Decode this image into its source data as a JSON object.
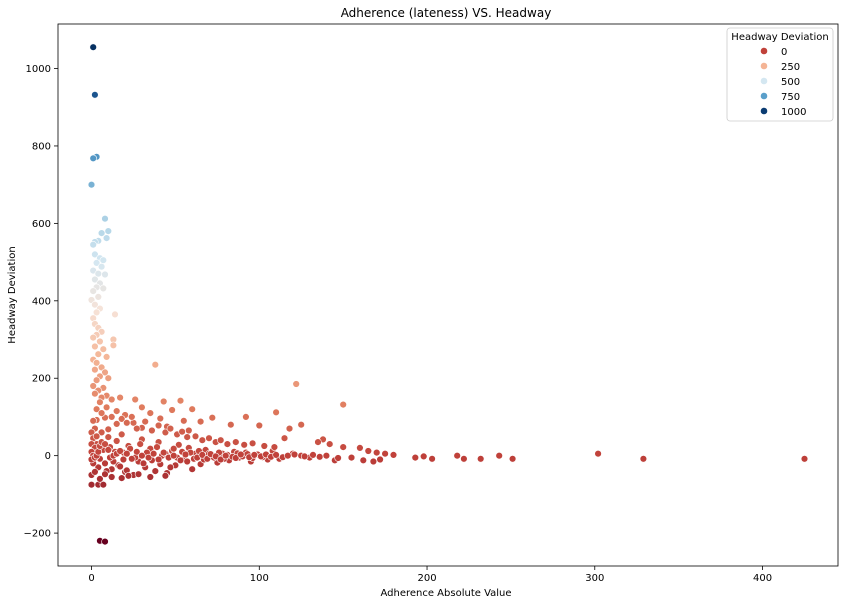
{
  "chart_data": {
    "type": "scatter",
    "title": "Adherence (lateness) VS. Headway",
    "xlabel": "Adherence Absolute Value",
    "ylabel": "Headway Deviation",
    "xlim": [
      -20,
      445
    ],
    "ylim": [
      -285,
      1115
    ],
    "xticks": [
      0,
      100,
      200,
      300,
      400
    ],
    "yticks": [
      -200,
      0,
      200,
      400,
      600,
      800,
      1000
    ],
    "xtick_labels": [
      "0",
      "100",
      "200",
      "300",
      "400"
    ],
    "ytick_labels": [
      "−200",
      "0",
      "200",
      "400",
      "600",
      "800",
      "1000"
    ],
    "grid": false,
    "legend": {
      "title": "Headway Deviation",
      "placement": "top-right",
      "entries": [
        {
          "label": "0",
          "value": 0,
          "color": "#c0413a"
        },
        {
          "label": "250",
          "value": 250,
          "color": "#f4b495"
        },
        {
          "label": "500",
          "value": 500,
          "color": "#d4e7f1"
        },
        {
          "label": "750",
          "value": 750,
          "color": "#5a9fca"
        },
        {
          "label": "1000",
          "value": 1000,
          "color": "#0b3c72"
        }
      ]
    },
    "color_scale": {
      "stops": [
        {
          "value": -220,
          "color": "#67001f"
        },
        {
          "value": 0,
          "color": "#c0413a"
        },
        {
          "value": 125,
          "color": "#e07c5e"
        },
        {
          "value": 250,
          "color": "#f4b495"
        },
        {
          "value": 375,
          "color": "#f6e3d8"
        },
        {
          "value": 500,
          "color": "#d4e7f1"
        },
        {
          "value": 625,
          "color": "#a7cfe4"
        },
        {
          "value": 750,
          "color": "#5a9fca"
        },
        {
          "value": 875,
          "color": "#2b6aa8"
        },
        {
          "value": 1000,
          "color": "#0b3c72"
        },
        {
          "value": 1060,
          "color": "#053061"
        }
      ]
    },
    "points": [
      [
        1,
        1055
      ],
      [
        2,
        932
      ],
      [
        3,
        772
      ],
      [
        1,
        768
      ],
      [
        0,
        700
      ],
      [
        8,
        612
      ],
      [
        10,
        580
      ],
      [
        6,
        575
      ],
      [
        9,
        562
      ],
      [
        4,
        555
      ],
      [
        2,
        552
      ],
      [
        1,
        545
      ],
      [
        2,
        520
      ],
      [
        5,
        510
      ],
      [
        7,
        505
      ],
      [
        3,
        498
      ],
      [
        6,
        488
      ],
      [
        1,
        478
      ],
      [
        4,
        470
      ],
      [
        8,
        468
      ],
      [
        2,
        455
      ],
      [
        5,
        445
      ],
      [
        3,
        435
      ],
      [
        7,
        432
      ],
      [
        1,
        425
      ],
      [
        4,
        410
      ],
      [
        0,
        402
      ],
      [
        2,
        390
      ],
      [
        5,
        380
      ],
      [
        3,
        370
      ],
      [
        14,
        365
      ],
      [
        1,
        355
      ],
      [
        2,
        340
      ],
      [
        4,
        330
      ],
      [
        6,
        320
      ],
      [
        3,
        312
      ],
      [
        1,
        305
      ],
      [
        13,
        300
      ],
      [
        5,
        295
      ],
      [
        13,
        285
      ],
      [
        2,
        282
      ],
      [
        7,
        275
      ],
      [
        4,
        262
      ],
      [
        9,
        255
      ],
      [
        1,
        248
      ],
      [
        3,
        240
      ],
      [
        38,
        235
      ],
      [
        6,
        228
      ],
      [
        2,
        222
      ],
      [
        8,
        215
      ],
      [
        5,
        205
      ],
      [
        10,
        200
      ],
      [
        3,
        195
      ],
      [
        122,
        185
      ],
      [
        1,
        180
      ],
      [
        7,
        175
      ],
      [
        4,
        168
      ],
      [
        2,
        160
      ],
      [
        9,
        155
      ],
      [
        6,
        150
      ],
      [
        12,
        145
      ],
      [
        17,
        150
      ],
      [
        26,
        145
      ],
      [
        43,
        140
      ],
      [
        53,
        142
      ],
      [
        5,
        138
      ],
      [
        150,
        132
      ],
      [
        30,
        125
      ],
      [
        48,
        118
      ],
      [
        60,
        120
      ],
      [
        35,
        110
      ],
      [
        110,
        112
      ],
      [
        92,
        100
      ],
      [
        72,
        98
      ],
      [
        20,
        105
      ],
      [
        8,
        98
      ],
      [
        41,
        96
      ],
      [
        3,
        92
      ],
      [
        55,
        90
      ],
      [
        65,
        88
      ],
      [
        25,
        85
      ],
      [
        15,
        82
      ],
      [
        83,
        80
      ],
      [
        100,
        78
      ],
      [
        125,
        80
      ],
      [
        45,
        75
      ],
      [
        30,
        72
      ],
      [
        118,
        70
      ],
      [
        10,
        68
      ],
      [
        58,
        65
      ],
      [
        138,
        42
      ],
      [
        115,
        45
      ],
      [
        135,
        35
      ],
      [
        142,
        30
      ],
      [
        150,
        22
      ],
      [
        160,
        20
      ],
      [
        165,
        12
      ],
      [
        170,
        8
      ],
      [
        175,
        5
      ],
      [
        180,
        2
      ],
      [
        193,
        -5
      ],
      [
        198,
        -2
      ],
      [
        203,
        -8
      ],
      [
        218,
        0
      ],
      [
        222,
        -8
      ],
      [
        232,
        -8
      ],
      [
        243,
        0
      ],
      [
        251,
        -8
      ],
      [
        302,
        5
      ],
      [
        329,
        -8
      ],
      [
        425,
        -8
      ],
      [
        155,
        -5
      ],
      [
        162,
        -12
      ],
      [
        168,
        -15
      ],
      [
        172,
        -10
      ],
      [
        145,
        -12
      ],
      [
        130,
        -5
      ],
      [
        125,
        0
      ],
      [
        120,
        5
      ],
      [
        112,
        -8
      ],
      [
        108,
        12
      ],
      [
        105,
        -10
      ],
      [
        98,
        2
      ],
      [
        95,
        -15
      ],
      [
        92,
        8
      ],
      [
        88,
        -5
      ],
      [
        85,
        10
      ],
      [
        82,
        -12
      ],
      [
        78,
        5
      ],
      [
        75,
        -18
      ],
      [
        72,
        0
      ],
      [
        68,
        15
      ],
      [
        65,
        -22
      ],
      [
        62,
        5
      ],
      [
        60,
        -35
      ],
      [
        58,
        20
      ],
      [
        55,
        -10
      ],
      [
        52,
        28
      ],
      [
        50,
        -25
      ],
      [
        48,
        12
      ],
      [
        45,
        -45
      ],
      [
        42,
        0
      ],
      [
        40,
        35
      ],
      [
        38,
        -40
      ],
      [
        35,
        18
      ],
      [
        32,
        -30
      ],
      [
        30,
        42
      ],
      [
        28,
        -15
      ],
      [
        25,
        -50
      ],
      [
        22,
        25
      ],
      [
        20,
        -42
      ],
      [
        18,
        55
      ],
      [
        16,
        -25
      ],
      [
        14,
        10
      ],
      [
        12,
        -35
      ],
      [
        10,
        48
      ],
      [
        8,
        -20
      ],
      [
        6,
        60
      ],
      [
        4,
        -30
      ],
      [
        2,
        5
      ],
      [
        1,
        -20
      ],
      [
        3,
        30
      ],
      [
        5,
        -8
      ],
      [
        7,
        15
      ],
      [
        9,
        -40
      ],
      [
        11,
        22
      ],
      [
        13,
        -15
      ],
      [
        15,
        38
      ],
      [
        17,
        -28
      ],
      [
        19,
        8
      ],
      [
        21,
        -38
      ],
      [
        23,
        18
      ],
      [
        26,
        -5
      ],
      [
        29,
        30
      ],
      [
        31,
        -20
      ],
      [
        33,
        8
      ],
      [
        36,
        -12
      ],
      [
        39,
        22
      ],
      [
        41,
        -22
      ],
      [
        44,
        5
      ],
      [
        47,
        -30
      ],
      [
        49,
        18
      ],
      [
        51,
        -5
      ],
      [
        54,
        10
      ],
      [
        57,
        -15
      ],
      [
        59,
        8
      ],
      [
        61,
        -8
      ],
      [
        64,
        12
      ],
      [
        67,
        -10
      ],
      [
        70,
        5
      ],
      [
        73,
        -5
      ],
      [
        76,
        8
      ],
      [
        79,
        -8
      ],
      [
        81,
        2
      ],
      [
        84,
        -3
      ],
      [
        87,
        6
      ],
      [
        90,
        -2
      ],
      [
        93,
        4
      ],
      [
        96,
        -6
      ],
      [
        99,
        3
      ],
      [
        102,
        -4
      ],
      [
        0,
        -75
      ],
      [
        4,
        -75
      ],
      [
        7,
        -75
      ],
      [
        12,
        -55
      ],
      [
        18,
        -58
      ],
      [
        22,
        -52
      ],
      [
        28,
        -48
      ],
      [
        35,
        -55
      ],
      [
        44,
        -52
      ],
      [
        0,
        -50
      ],
      [
        2,
        -42
      ],
      [
        5,
        -60
      ],
      [
        8,
        -48
      ],
      [
        5,
        -220
      ],
      [
        8,
        -222
      ],
      [
        1,
        90
      ],
      [
        2,
        70
      ],
      [
        0,
        60
      ],
      [
        1,
        45
      ],
      [
        3,
        50
      ],
      [
        0,
        30
      ],
      [
        2,
        20
      ],
      [
        0,
        10
      ],
      [
        1,
        0
      ],
      [
        0,
        -10
      ],
      [
        2,
        -5
      ],
      [
        3,
        0
      ],
      [
        4,
        10
      ],
      [
        5,
        25
      ],
      [
        6,
        35
      ],
      [
        8,
        30
      ],
      [
        10,
        15
      ],
      [
        11,
        -5
      ],
      [
        13,
        0
      ],
      [
        15,
        5
      ],
      [
        17,
        12
      ],
      [
        19,
        -10
      ],
      [
        21,
        5
      ],
      [
        24,
        -8
      ],
      [
        27,
        10
      ],
      [
        30,
        0
      ],
      [
        34,
        -5
      ],
      [
        37,
        5
      ],
      [
        40,
        -10
      ],
      [
        43,
        8
      ],
      [
        46,
        -5
      ],
      [
        49,
        0
      ],
      [
        53,
        -12
      ],
      [
        56,
        3
      ],
      [
        63,
        -5
      ],
      [
        66,
        2
      ],
      [
        69,
        -8
      ],
      [
        71,
        4
      ],
      [
        74,
        -2
      ],
      [
        77,
        -10
      ],
      [
        80,
        0
      ],
      [
        86,
        -6
      ],
      [
        89,
        3
      ],
      [
        94,
        -4
      ],
      [
        97,
        2
      ],
      [
        101,
        -2
      ],
      [
        104,
        3
      ],
      [
        107,
        -3
      ],
      [
        110,
        2
      ],
      [
        114,
        -4
      ],
      [
        117,
        0
      ],
      [
        121,
        3
      ],
      [
        127,
        -2
      ],
      [
        132,
        2
      ],
      [
        136,
        -3
      ],
      [
        140,
        0
      ],
      [
        147,
        -6
      ],
      [
        3,
        120
      ],
      [
        6,
        110
      ],
      [
        9,
        125
      ],
      [
        12,
        100
      ],
      [
        15,
        115
      ],
      [
        18,
        95
      ],
      [
        21,
        85
      ],
      [
        24,
        100
      ],
      [
        27,
        70
      ],
      [
        32,
        88
      ],
      [
        36,
        65
      ],
      [
        40,
        78
      ],
      [
        44,
        60
      ],
      [
        47,
        70
      ],
      [
        51,
        55
      ],
      [
        54,
        62
      ],
      [
        57,
        48
      ],
      [
        62,
        50
      ],
      [
        66,
        40
      ],
      [
        70,
        45
      ],
      [
        74,
        35
      ],
      [
        77,
        40
      ],
      [
        81,
        30
      ],
      [
        86,
        35
      ],
      [
        91,
        28
      ],
      [
        96,
        32
      ],
      [
        103,
        25
      ],
      [
        109,
        22
      ]
    ]
  }
}
